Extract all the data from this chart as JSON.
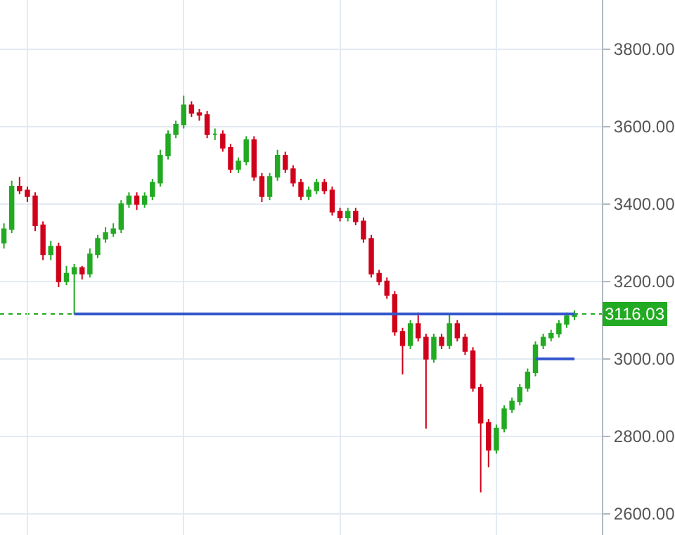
{
  "chart_data": {
    "type": "candlestick",
    "categories": [
      null,
      null,
      null,
      null,
      null,
      null,
      null,
      null,
      null,
      null,
      null,
      null,
      null,
      null,
      null,
      null,
      null,
      null,
      null,
      null,
      null,
      null,
      null,
      null,
      null,
      null,
      null,
      null,
      null,
      null,
      null,
      null,
      null,
      null,
      null,
      null,
      null,
      null,
      null,
      null,
      null,
      null,
      null,
      null,
      null,
      null,
      null,
      null,
      null,
      null,
      null,
      null,
      null,
      null,
      null,
      null,
      null,
      null,
      null,
      null,
      null,
      null,
      null,
      null,
      null,
      null,
      null,
      null,
      null,
      null,
      null,
      null,
      null,
      null
    ],
    "ohlc": [
      [
        3300,
        3350,
        3285,
        3335
      ],
      [
        3335,
        3460,
        3325,
        3445
      ],
      [
        3445,
        3470,
        3425,
        3435
      ],
      [
        3435,
        3445,
        3405,
        3420
      ],
      [
        3420,
        3430,
        3330,
        3345
      ],
      [
        3345,
        3355,
        3255,
        3270
      ],
      [
        3270,
        3305,
        3255,
        3290
      ],
      [
        3290,
        3300,
        3185,
        3200
      ],
      [
        3200,
        3240,
        3190,
        3220
      ],
      [
        3220,
        3245,
        3115,
        3235
      ],
      [
        3235,
        3240,
        3205,
        3220
      ],
      [
        3220,
        3285,
        3210,
        3270
      ],
      [
        3270,
        3320,
        3260,
        3310
      ],
      [
        3310,
        3340,
        3300,
        3325
      ],
      [
        3325,
        3350,
        3315,
        3335
      ],
      [
        3335,
        3410,
        3325,
        3400
      ],
      [
        3400,
        3430,
        3390,
        3420
      ],
      [
        3420,
        3430,
        3385,
        3400
      ],
      [
        3400,
        3430,
        3390,
        3420
      ],
      [
        3420,
        3465,
        3410,
        3455
      ],
      [
        3455,
        3540,
        3445,
        3525
      ],
      [
        3525,
        3590,
        3515,
        3580
      ],
      [
        3580,
        3615,
        3570,
        3605
      ],
      [
        3605,
        3680,
        3595,
        3655
      ],
      [
        3655,
        3665,
        3625,
        3635
      ],
      [
        3635,
        3645,
        3615,
        3630
      ],
      [
        3630,
        3640,
        3570,
        3580
      ],
      [
        3580,
        3595,
        3565,
        3580
      ],
      [
        3580,
        3590,
        3535,
        3545
      ],
      [
        3545,
        3555,
        3480,
        3490
      ],
      [
        3490,
        3520,
        3480,
        3510
      ],
      [
        3510,
        3575,
        3500,
        3565
      ],
      [
        3565,
        3575,
        3460,
        3470
      ],
      [
        3470,
        3480,
        3405,
        3420
      ],
      [
        3420,
        3480,
        3410,
        3470
      ],
      [
        3470,
        3540,
        3460,
        3525
      ],
      [
        3525,
        3535,
        3480,
        3490
      ],
      [
        3490,
        3500,
        3445,
        3455
      ],
      [
        3455,
        3465,
        3410,
        3420
      ],
      [
        3420,
        3445,
        3410,
        3435
      ],
      [
        3435,
        3465,
        3425,
        3455
      ],
      [
        3455,
        3465,
        3425,
        3435
      ],
      [
        3435,
        3445,
        3370,
        3380
      ],
      [
        3380,
        3390,
        3355,
        3365
      ],
      [
        3365,
        3390,
        3355,
        3380
      ],
      [
        3380,
        3390,
        3345,
        3355
      ],
      [
        3355,
        3365,
        3300,
        3310
      ],
      [
        3310,
        3320,
        3210,
        3220
      ],
      [
        3220,
        3230,
        3190,
        3200
      ],
      [
        3200,
        3210,
        3155,
        3165
      ],
      [
        3165,
        3175,
        3060,
        3070
      ],
      [
        3070,
        3080,
        2960,
        3035
      ],
      [
        3035,
        3100,
        3025,
        3090
      ],
      [
        3090,
        3120,
        3045,
        3055
      ],
      [
        3055,
        3065,
        2820,
        3000
      ],
      [
        3000,
        3065,
        2990,
        3055
      ],
      [
        3055,
        3065,
        3025,
        3035
      ],
      [
        3035,
        3115,
        3025,
        3090
      ],
      [
        3090,
        3100,
        3045,
        3055
      ],
      [
        3055,
        3065,
        3010,
        3020
      ],
      [
        3020,
        3030,
        2915,
        2925
      ],
      [
        2925,
        2935,
        2655,
        2835
      ],
      [
        2835,
        2845,
        2720,
        2765
      ],
      [
        2765,
        2830,
        2755,
        2820
      ],
      [
        2820,
        2880,
        2810,
        2870
      ],
      [
        2870,
        2900,
        2860,
        2890
      ],
      [
        2890,
        2935,
        2880,
        2925
      ],
      [
        2925,
        2975,
        2915,
        2965
      ],
      [
        2965,
        3045,
        2955,
        3035
      ],
      [
        3035,
        3065,
        3025,
        3055
      ],
      [
        3055,
        3075,
        3045,
        3065
      ],
      [
        3065,
        3100,
        3055,
        3090
      ],
      [
        3090,
        3120,
        3080,
        3110
      ],
      [
        3110,
        3125,
        3100,
        3116
      ]
    ],
    "colors": [
      "#22aa22",
      "#22aa22",
      "#d0021b",
      "#d0021b",
      "#d0021b",
      "#d0021b",
      "#22aa22",
      "#d0021b",
      "#22aa22",
      "#22aa22",
      "#d0021b",
      "#22aa22",
      "#22aa22",
      "#22aa22",
      "#22aa22",
      "#22aa22",
      "#22aa22",
      "#d0021b",
      "#22aa22",
      "#22aa22",
      "#22aa22",
      "#22aa22",
      "#22aa22",
      "#22aa22",
      "#d0021b",
      "#d0021b",
      "#d0021b",
      "#22aa22",
      "#d0021b",
      "#d0021b",
      "#22aa22",
      "#22aa22",
      "#d0021b",
      "#d0021b",
      "#22aa22",
      "#22aa22",
      "#d0021b",
      "#d0021b",
      "#d0021b",
      "#22aa22",
      "#22aa22",
      "#d0021b",
      "#d0021b",
      "#d0021b",
      "#22aa22",
      "#d0021b",
      "#d0021b",
      "#d0021b",
      "#d0021b",
      "#d0021b",
      "#d0021b",
      "#d0021b",
      "#22aa22",
      "#d0021b",
      "#d0021b",
      "#22aa22",
      "#d0021b",
      "#22aa22",
      "#d0021b",
      "#d0021b",
      "#d0021b",
      "#d0021b",
      "#d0021b",
      "#22aa22",
      "#22aa22",
      "#22aa22",
      "#22aa22",
      "#22aa22",
      "#22aa22",
      "#22aa22",
      "#22aa22",
      "#22aa22",
      "#22aa22",
      "#22aa22"
    ],
    "series": [
      {
        "type": "line",
        "color": "#3355cc",
        "values": [
          null,
          null,
          null,
          null,
          null,
          null,
          null,
          null,
          null,
          3116,
          3116,
          3116,
          3116,
          3116,
          3116,
          3116,
          3116,
          3116,
          3116,
          3116,
          3116,
          3116,
          3116,
          3116,
          3116,
          3116,
          3116,
          3116,
          3116,
          3116,
          3116,
          3116,
          3116,
          3116,
          3116,
          3116,
          3116,
          3116,
          3116,
          3116,
          3116,
          3116,
          3116,
          3116,
          3116,
          3116,
          3116,
          3116,
          3116,
          3116,
          3116,
          3116,
          3116,
          3116,
          3116,
          3116,
          3116,
          3116,
          3116,
          3116,
          3116,
          3116,
          3116,
          3116,
          3116,
          3116,
          3116,
          3116,
          3116,
          3116,
          3116,
          3116,
          3116,
          3116
        ]
      },
      {
        "type": "line",
        "color": "#3355cc",
        "values": [
          null,
          null,
          null,
          null,
          null,
          null,
          null,
          null,
          null,
          null,
          null,
          null,
          null,
          null,
          null,
          null,
          null,
          null,
          null,
          null,
          null,
          null,
          null,
          null,
          null,
          null,
          null,
          null,
          null,
          null,
          null,
          null,
          null,
          null,
          null,
          null,
          null,
          null,
          null,
          null,
          null,
          null,
          null,
          null,
          null,
          null,
          null,
          null,
          null,
          null,
          null,
          null,
          null,
          null,
          null,
          null,
          null,
          null,
          null,
          null,
          null,
          null,
          null,
          null,
          null,
          null,
          null,
          null,
          3000,
          3000,
          3000,
          3000,
          3000,
          3000
        ]
      }
    ],
    "ref_lines": [
      {
        "axis": "y",
        "value": 3116.03,
        "label": "3116.03",
        "color": "#22aa22",
        "line_style": "dotted"
      }
    ],
    "ylim": [
      2545,
      3927
    ],
    "yticks": [
      {
        "value": 2600,
        "label": "2600.00"
      },
      {
        "value": 2800,
        "label": "2800.00"
      },
      {
        "value": 3000,
        "label": "3000.00"
      },
      {
        "value": 3200,
        "label": "3200.00"
      },
      {
        "value": 3400,
        "label": "3400.00"
      },
      {
        "value": 3600,
        "label": "3600.00"
      },
      {
        "value": 3800,
        "label": "3800.00"
      }
    ],
    "grid": true,
    "tick_labels": "y"
  }
}
